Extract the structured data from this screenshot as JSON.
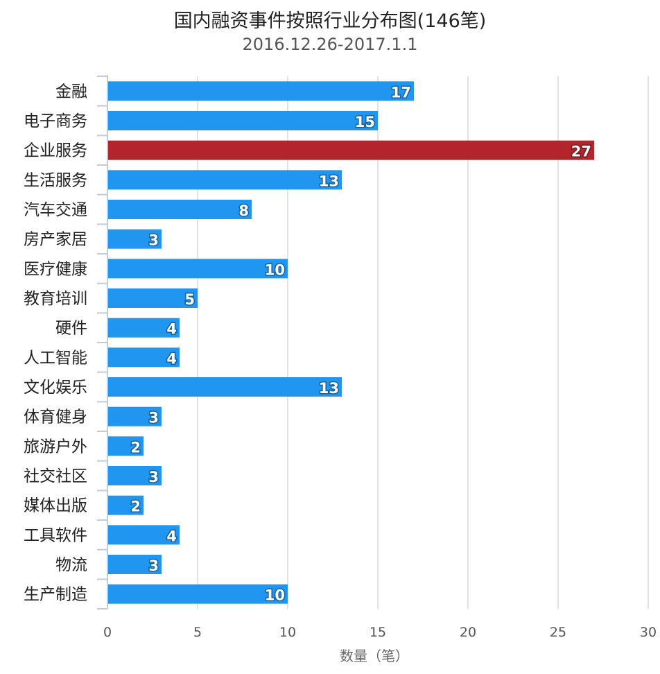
{
  "chart_data": {
    "type": "bar",
    "orientation": "horizontal",
    "title": "国内融资事件按照行业分布图(146笔)",
    "subtitle": "2016.12.26-2017.1.1",
    "xlabel": "数量（笔）",
    "ylabel": "",
    "xlim": [
      0,
      30
    ],
    "xticks": [
      0,
      5,
      10,
      15,
      20,
      25,
      30
    ],
    "grid": true,
    "legend": "none",
    "colors": {
      "default": "#2196F0",
      "highlight": "#B3242C"
    },
    "highlight_category": "企业服务",
    "categories": [
      "金融",
      "电子商务",
      "企业服务",
      "生活服务",
      "汽车交通",
      "房产家居",
      "医疗健康",
      "教育培训",
      "硬件",
      "人工智能",
      "文化娱乐",
      "体育健身",
      "旅游户外",
      "社交社区",
      "媒体出版",
      "工具软件",
      "物流",
      "生产制造"
    ],
    "values": [
      17,
      15,
      27,
      13,
      8,
      3,
      10,
      5,
      4,
      4,
      13,
      3,
      2,
      3,
      2,
      4,
      3,
      10
    ],
    "data_labels": true
  }
}
